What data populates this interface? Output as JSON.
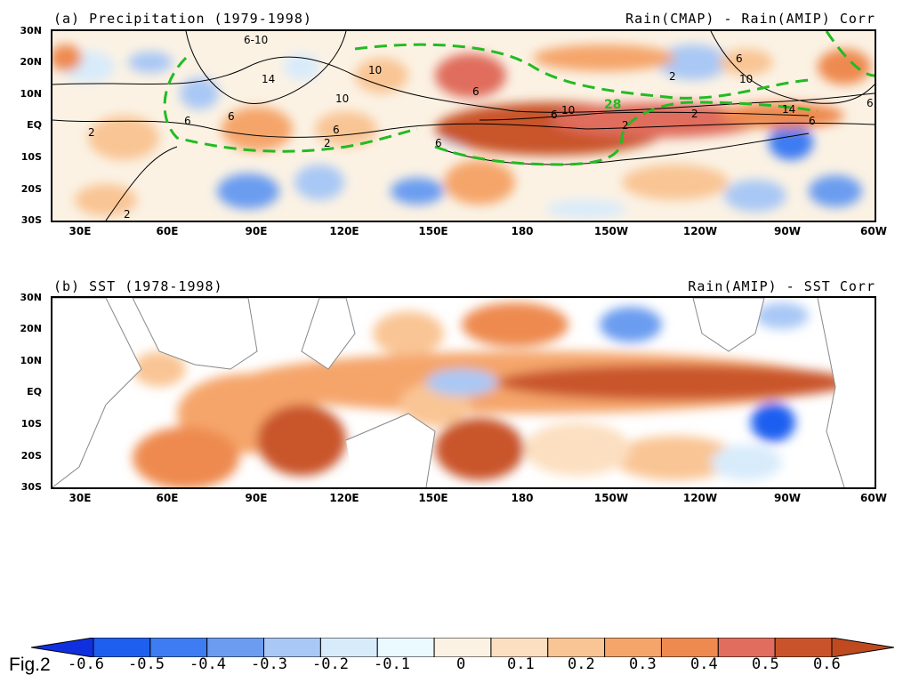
{
  "figure_label": "Fig.2",
  "panel_a": {
    "title": "(a) Precipitation (1979-1998)",
    "right_title": "Rain(CMAP) - Rain(AMIP) Corr",
    "contour_labels": [
      "6-10",
      "10",
      "6",
      "14",
      "10",
      "2",
      "6",
      "6",
      "2",
      "6",
      "10",
      "6",
      "10",
      "2",
      "14",
      "6",
      "6",
      "2",
      "6",
      "2",
      "6",
      "2"
    ],
    "highlight_label": "28"
  },
  "panel_b": {
    "title": "(b) SST (1978-1998)",
    "right_title": "Rain(AMIP) - SST Corr"
  },
  "lat_labels": [
    "30N",
    "20N",
    "10N",
    "EQ",
    "10S",
    "20S",
    "30S"
  ],
  "lon_labels": [
    "30E",
    "60E",
    "90E",
    "120E",
    "150E",
    "180",
    "150W",
    "120W",
    "90W",
    "60W"
  ],
  "colorbar": {
    "labels": [
      "-0.6",
      "-0.5",
      "-0.4",
      "-0.3",
      "-0.2",
      "-0.1",
      "0",
      "0.1",
      "0.2",
      "0.3",
      "0.4",
      "0.5",
      "0.6"
    ],
    "colors": [
      "#1e5ff0",
      "#3d7cf2",
      "#6b9cf0",
      "#a9c8f5",
      "#d8ebfb",
      "#eafaff",
      "#fbf2e4",
      "#fcdfc0",
      "#f9c594",
      "#f5a56a",
      "#ee8a4f",
      "#e06d5d",
      "#c9542c"
    ],
    "under_color": "#1030e0",
    "over_color": "#c04a20"
  }
}
